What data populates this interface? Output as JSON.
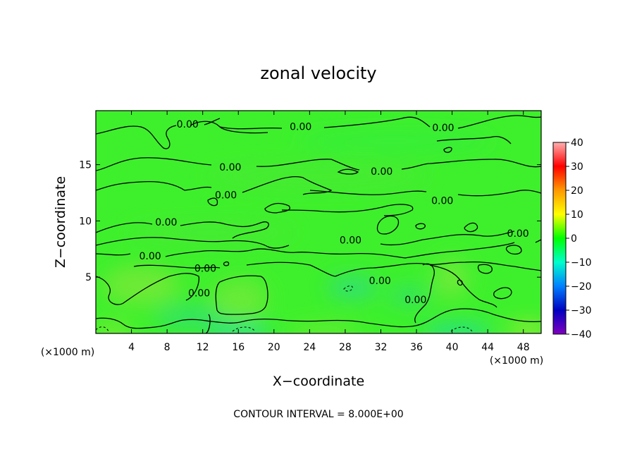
{
  "chart_data": {
    "type": "heatmap",
    "title": "zonal velocity",
    "xlabel": "X−coordinate",
    "ylabel": "Z−coordinate",
    "x_unit_left": "(×1000 m)",
    "x_unit_right": "(×1000 m)",
    "footer": "CONTOUR INTERVAL = 8.000E+00",
    "xlim": [
      0,
      50
    ],
    "ylim": [
      0,
      19.8
    ],
    "x_ticks": [
      4,
      8,
      12,
      16,
      20,
      24,
      28,
      32,
      36,
      40,
      44,
      48
    ],
    "y_ticks": [
      5,
      10,
      15
    ],
    "colorbar": {
      "min": -40,
      "max": 40,
      "ticks": [
        40,
        30,
        20,
        10,
        0,
        -10,
        -20,
        -30,
        -40
      ],
      "colors": [
        "#ffb0b0",
        "#ff0000",
        "#ff9900",
        "#ffff00",
        "#00ff00",
        "#00ffcc",
        "#0080ff",
        "#0000c0",
        "#8000c0"
      ]
    },
    "contour_level": "0.00",
    "contour_labels": [
      {
        "text": "0.00",
        "x": 10.3,
        "y": 18.6
      },
      {
        "text": "0.00",
        "x": 23.0,
        "y": 18.4
      },
      {
        "text": "0.00",
        "x": 39.0,
        "y": 18.3
      },
      {
        "text": "0.00",
        "x": 15.1,
        "y": 14.8
      },
      {
        "text": "0.00",
        "x": 32.1,
        "y": 14.4
      },
      {
        "text": "0.00",
        "x": 14.6,
        "y": 12.3
      },
      {
        "text": "0.00",
        "x": 38.9,
        "y": 11.8
      },
      {
        "text": "0.00",
        "x": 7.9,
        "y": 9.9
      },
      {
        "text": "0.00",
        "x": 47.4,
        "y": 8.9
      },
      {
        "text": "0.00",
        "x": 28.6,
        "y": 8.3
      },
      {
        "text": "0.00",
        "x": 6.1,
        "y": 6.9
      },
      {
        "text": "0.00",
        "x": 12.3,
        "y": 5.8
      },
      {
        "text": "0.00",
        "x": 31.9,
        "y": 4.7
      },
      {
        "text": "0.00",
        "x": 11.6,
        "y": 3.6
      },
      {
        "text": "0.00",
        "x": 35.9,
        "y": 3.0
      }
    ]
  }
}
